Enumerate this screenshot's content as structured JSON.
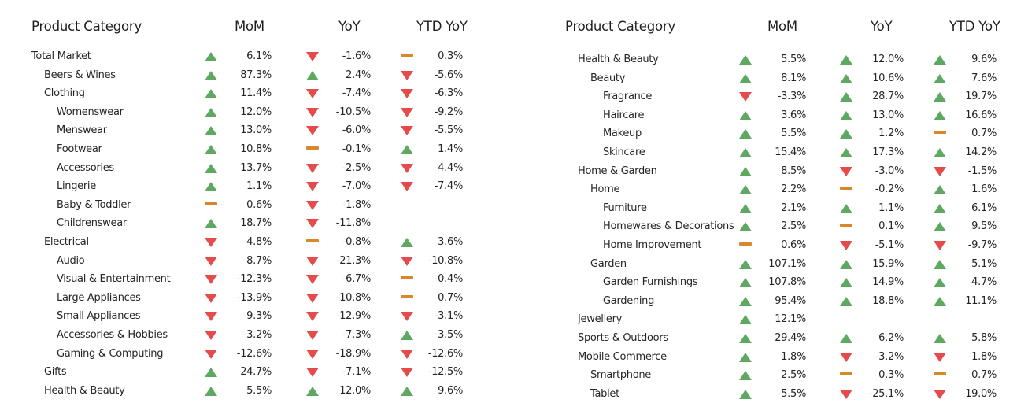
{
  "colors": {
    "up": "#5fa862",
    "down": "#e54b4b",
    "flat": "#d8882a"
  },
  "left": {
    "headers": {
      "category": "Product Category",
      "mom": "MoM",
      "yoy": "YoY",
      "ytd": "YTD YoY"
    },
    "rows": [
      {
        "label": "Total Market",
        "level": 0,
        "mom": "6.1%",
        "mom_icon": "up",
        "yoy": "-1.6%",
        "yoy_icon": "down",
        "ytd": "0.3%",
        "ytd_icon": "flat"
      },
      {
        "label": "Beers & Wines",
        "level": 1,
        "mom": "87.3%",
        "mom_icon": "up",
        "yoy": "2.4%",
        "yoy_icon": "up",
        "ytd": "-5.6%",
        "ytd_icon": "down"
      },
      {
        "label": "Clothing",
        "level": 1,
        "mom": "11.4%",
        "mom_icon": "up",
        "yoy": "-7.4%",
        "yoy_icon": "down",
        "ytd": "-6.3%",
        "ytd_icon": "down"
      },
      {
        "label": "Womenswear",
        "level": 2,
        "mom": "12.0%",
        "mom_icon": "up",
        "yoy": "-10.5%",
        "yoy_icon": "down",
        "ytd": "-9.2%",
        "ytd_icon": "down"
      },
      {
        "label": "Menswear",
        "level": 2,
        "mom": "13.0%",
        "mom_icon": "up",
        "yoy": "-6.0%",
        "yoy_icon": "down",
        "ytd": "-5.5%",
        "ytd_icon": "down"
      },
      {
        "label": "Footwear",
        "level": 2,
        "mom": "10.8%",
        "mom_icon": "up",
        "yoy": "-0.1%",
        "yoy_icon": "flat",
        "ytd": "1.4%",
        "ytd_icon": "up"
      },
      {
        "label": "Accessories",
        "level": 2,
        "mom": "13.7%",
        "mom_icon": "up",
        "yoy": "-2.5%",
        "yoy_icon": "down",
        "ytd": "-4.4%",
        "ytd_icon": "down"
      },
      {
        "label": "Lingerie",
        "level": 2,
        "mom": "1.1%",
        "mom_icon": "up",
        "yoy": "-7.0%",
        "yoy_icon": "down",
        "ytd": "-7.4%",
        "ytd_icon": "down"
      },
      {
        "label": "Baby & Toddler",
        "level": 2,
        "mom": "0.6%",
        "mom_icon": "flat",
        "yoy": "-1.8%",
        "yoy_icon": "down",
        "ytd": "",
        "ytd_icon": ""
      },
      {
        "label": "Childrenswear",
        "level": 2,
        "mom": "18.7%",
        "mom_icon": "up",
        "yoy": "-11.8%",
        "yoy_icon": "down",
        "ytd": "",
        "ytd_icon": ""
      },
      {
        "label": "Electrical",
        "level": 1,
        "mom": "-4.8%",
        "mom_icon": "down",
        "yoy": "-0.8%",
        "yoy_icon": "flat",
        "ytd": "3.6%",
        "ytd_icon": "up"
      },
      {
        "label": "Audio",
        "level": 2,
        "mom": "-8.7%",
        "mom_icon": "down",
        "yoy": "-21.3%",
        "yoy_icon": "down",
        "ytd": "-10.8%",
        "ytd_icon": "down"
      },
      {
        "label": "Visual & Entertainment",
        "level": 2,
        "mom": "-12.3%",
        "mom_icon": "down",
        "yoy": "-6.7%",
        "yoy_icon": "down",
        "ytd": "-0.4%",
        "ytd_icon": "flat"
      },
      {
        "label": "Large Appliances",
        "level": 2,
        "mom": "-13.9%",
        "mom_icon": "down",
        "yoy": "-10.8%",
        "yoy_icon": "down",
        "ytd": "-0.7%",
        "ytd_icon": "flat"
      },
      {
        "label": "Small Appliances",
        "level": 2,
        "mom": "-9.3%",
        "mom_icon": "down",
        "yoy": "-12.9%",
        "yoy_icon": "down",
        "ytd": "-3.1%",
        "ytd_icon": "down"
      },
      {
        "label": "Accessories & Hobbies",
        "level": 2,
        "mom": "-3.2%",
        "mom_icon": "down",
        "yoy": "-7.3%",
        "yoy_icon": "down",
        "ytd": "3.5%",
        "ytd_icon": "up"
      },
      {
        "label": "Gaming & Computing",
        "level": 2,
        "mom": "-12.6%",
        "mom_icon": "down",
        "yoy": "-18.9%",
        "yoy_icon": "down",
        "ytd": "-12.6%",
        "ytd_icon": "down"
      },
      {
        "label": "Gifts",
        "level": 1,
        "mom": "24.7%",
        "mom_icon": "up",
        "yoy": "-7.1%",
        "yoy_icon": "down",
        "ytd": "-12.5%",
        "ytd_icon": "down"
      },
      {
        "label": "Health & Beauty",
        "level": 1,
        "mom": "5.5%",
        "mom_icon": "up",
        "yoy": "12.0%",
        "yoy_icon": "up",
        "ytd": "9.6%",
        "ytd_icon": "up"
      }
    ]
  },
  "right": {
    "headers": {
      "category": "Product Category",
      "mom": "MoM",
      "yoy": "YoY",
      "ytd": "YTD YoY"
    },
    "rows": [
      {
        "label": "Health & Beauty",
        "level": 1,
        "mom": "5.5%",
        "mom_icon": "up",
        "yoy": "12.0%",
        "yoy_icon": "up",
        "ytd": "9.6%",
        "ytd_icon": "up"
      },
      {
        "label": "Beauty",
        "level": 2,
        "mom": "8.1%",
        "mom_icon": "up",
        "yoy": "10.6%",
        "yoy_icon": "up",
        "ytd": "7.6%",
        "ytd_icon": "up"
      },
      {
        "label": "Fragrance",
        "level": 3,
        "mom": "-3.3%",
        "mom_icon": "down",
        "yoy": "28.7%",
        "yoy_icon": "up",
        "ytd": "19.7%",
        "ytd_icon": "up"
      },
      {
        "label": "Haircare",
        "level": 3,
        "mom": "3.6%",
        "mom_icon": "up",
        "yoy": "13.0%",
        "yoy_icon": "up",
        "ytd": "16.6%",
        "ytd_icon": "up"
      },
      {
        "label": "Makeup",
        "level": 3,
        "mom": "5.5%",
        "mom_icon": "up",
        "yoy": "1.2%",
        "yoy_icon": "up",
        "ytd": "0.7%",
        "ytd_icon": "flat"
      },
      {
        "label": "Skincare",
        "level": 3,
        "mom": "15.4%",
        "mom_icon": "up",
        "yoy": "17.3%",
        "yoy_icon": "up",
        "ytd": "14.2%",
        "ytd_icon": "up"
      },
      {
        "label": "Home & Garden",
        "level": 1,
        "mom": "8.5%",
        "mom_icon": "up",
        "yoy": "-3.0%",
        "yoy_icon": "down",
        "ytd": "-1.5%",
        "ytd_icon": "down"
      },
      {
        "label": "Home",
        "level": 2,
        "mom": "2.2%",
        "mom_icon": "up",
        "yoy": "-0.2%",
        "yoy_icon": "flat",
        "ytd": "1.6%",
        "ytd_icon": "up"
      },
      {
        "label": "Furniture",
        "level": 3,
        "mom": "2.1%",
        "mom_icon": "up",
        "yoy": "1.1%",
        "yoy_icon": "up",
        "ytd": "6.1%",
        "ytd_icon": "up"
      },
      {
        "label": "Homewares & Decorations",
        "level": 3,
        "mom": "2.5%",
        "mom_icon": "up",
        "yoy": "0.1%",
        "yoy_icon": "flat",
        "ytd": "9.5%",
        "ytd_icon": "up"
      },
      {
        "label": "Home Improvement",
        "level": 3,
        "mom": "0.6%",
        "mom_icon": "flat",
        "yoy": "-5.1%",
        "yoy_icon": "down",
        "ytd": "-9.7%",
        "ytd_icon": "down"
      },
      {
        "label": "Garden",
        "level": 2,
        "mom": "107.1%",
        "mom_icon": "up",
        "yoy": "15.9%",
        "yoy_icon": "up",
        "ytd": "5.1%",
        "ytd_icon": "up"
      },
      {
        "label": "Garden Furnishings",
        "level": 3,
        "mom": "107.8%",
        "mom_icon": "up",
        "yoy": "14.9%",
        "yoy_icon": "up",
        "ytd": "4.7%",
        "ytd_icon": "up"
      },
      {
        "label": "Gardening",
        "level": 3,
        "mom": "95.4%",
        "mom_icon": "up",
        "yoy": "18.8%",
        "yoy_icon": "up",
        "ytd": "11.1%",
        "ytd_icon": "up"
      },
      {
        "label": "Jewellery",
        "level": 1,
        "mom": "12.1%",
        "mom_icon": "up",
        "yoy": "",
        "yoy_icon": "",
        "ytd": "",
        "ytd_icon": ""
      },
      {
        "label": "Sports & Outdoors",
        "level": 1,
        "mom": "29.4%",
        "mom_icon": "up",
        "yoy": "6.2%",
        "yoy_icon": "up",
        "ytd": "5.8%",
        "ytd_icon": "up"
      },
      {
        "label": "Mobile Commerce",
        "level": 1,
        "mom": "1.8%",
        "mom_icon": "up",
        "yoy": "-3.2%",
        "yoy_icon": "down",
        "ytd": "-1.8%",
        "ytd_icon": "down"
      },
      {
        "label": "Smartphone",
        "level": 2,
        "mom": "2.5%",
        "mom_icon": "up",
        "yoy": "0.3%",
        "yoy_icon": "flat",
        "ytd": "0.7%",
        "ytd_icon": "flat"
      },
      {
        "label": "Tablet",
        "level": 2,
        "mom": "5.5%",
        "mom_icon": "up",
        "yoy": "-25.1%",
        "yoy_icon": "down",
        "ytd": "-19.0%",
        "ytd_icon": "down"
      }
    ]
  }
}
